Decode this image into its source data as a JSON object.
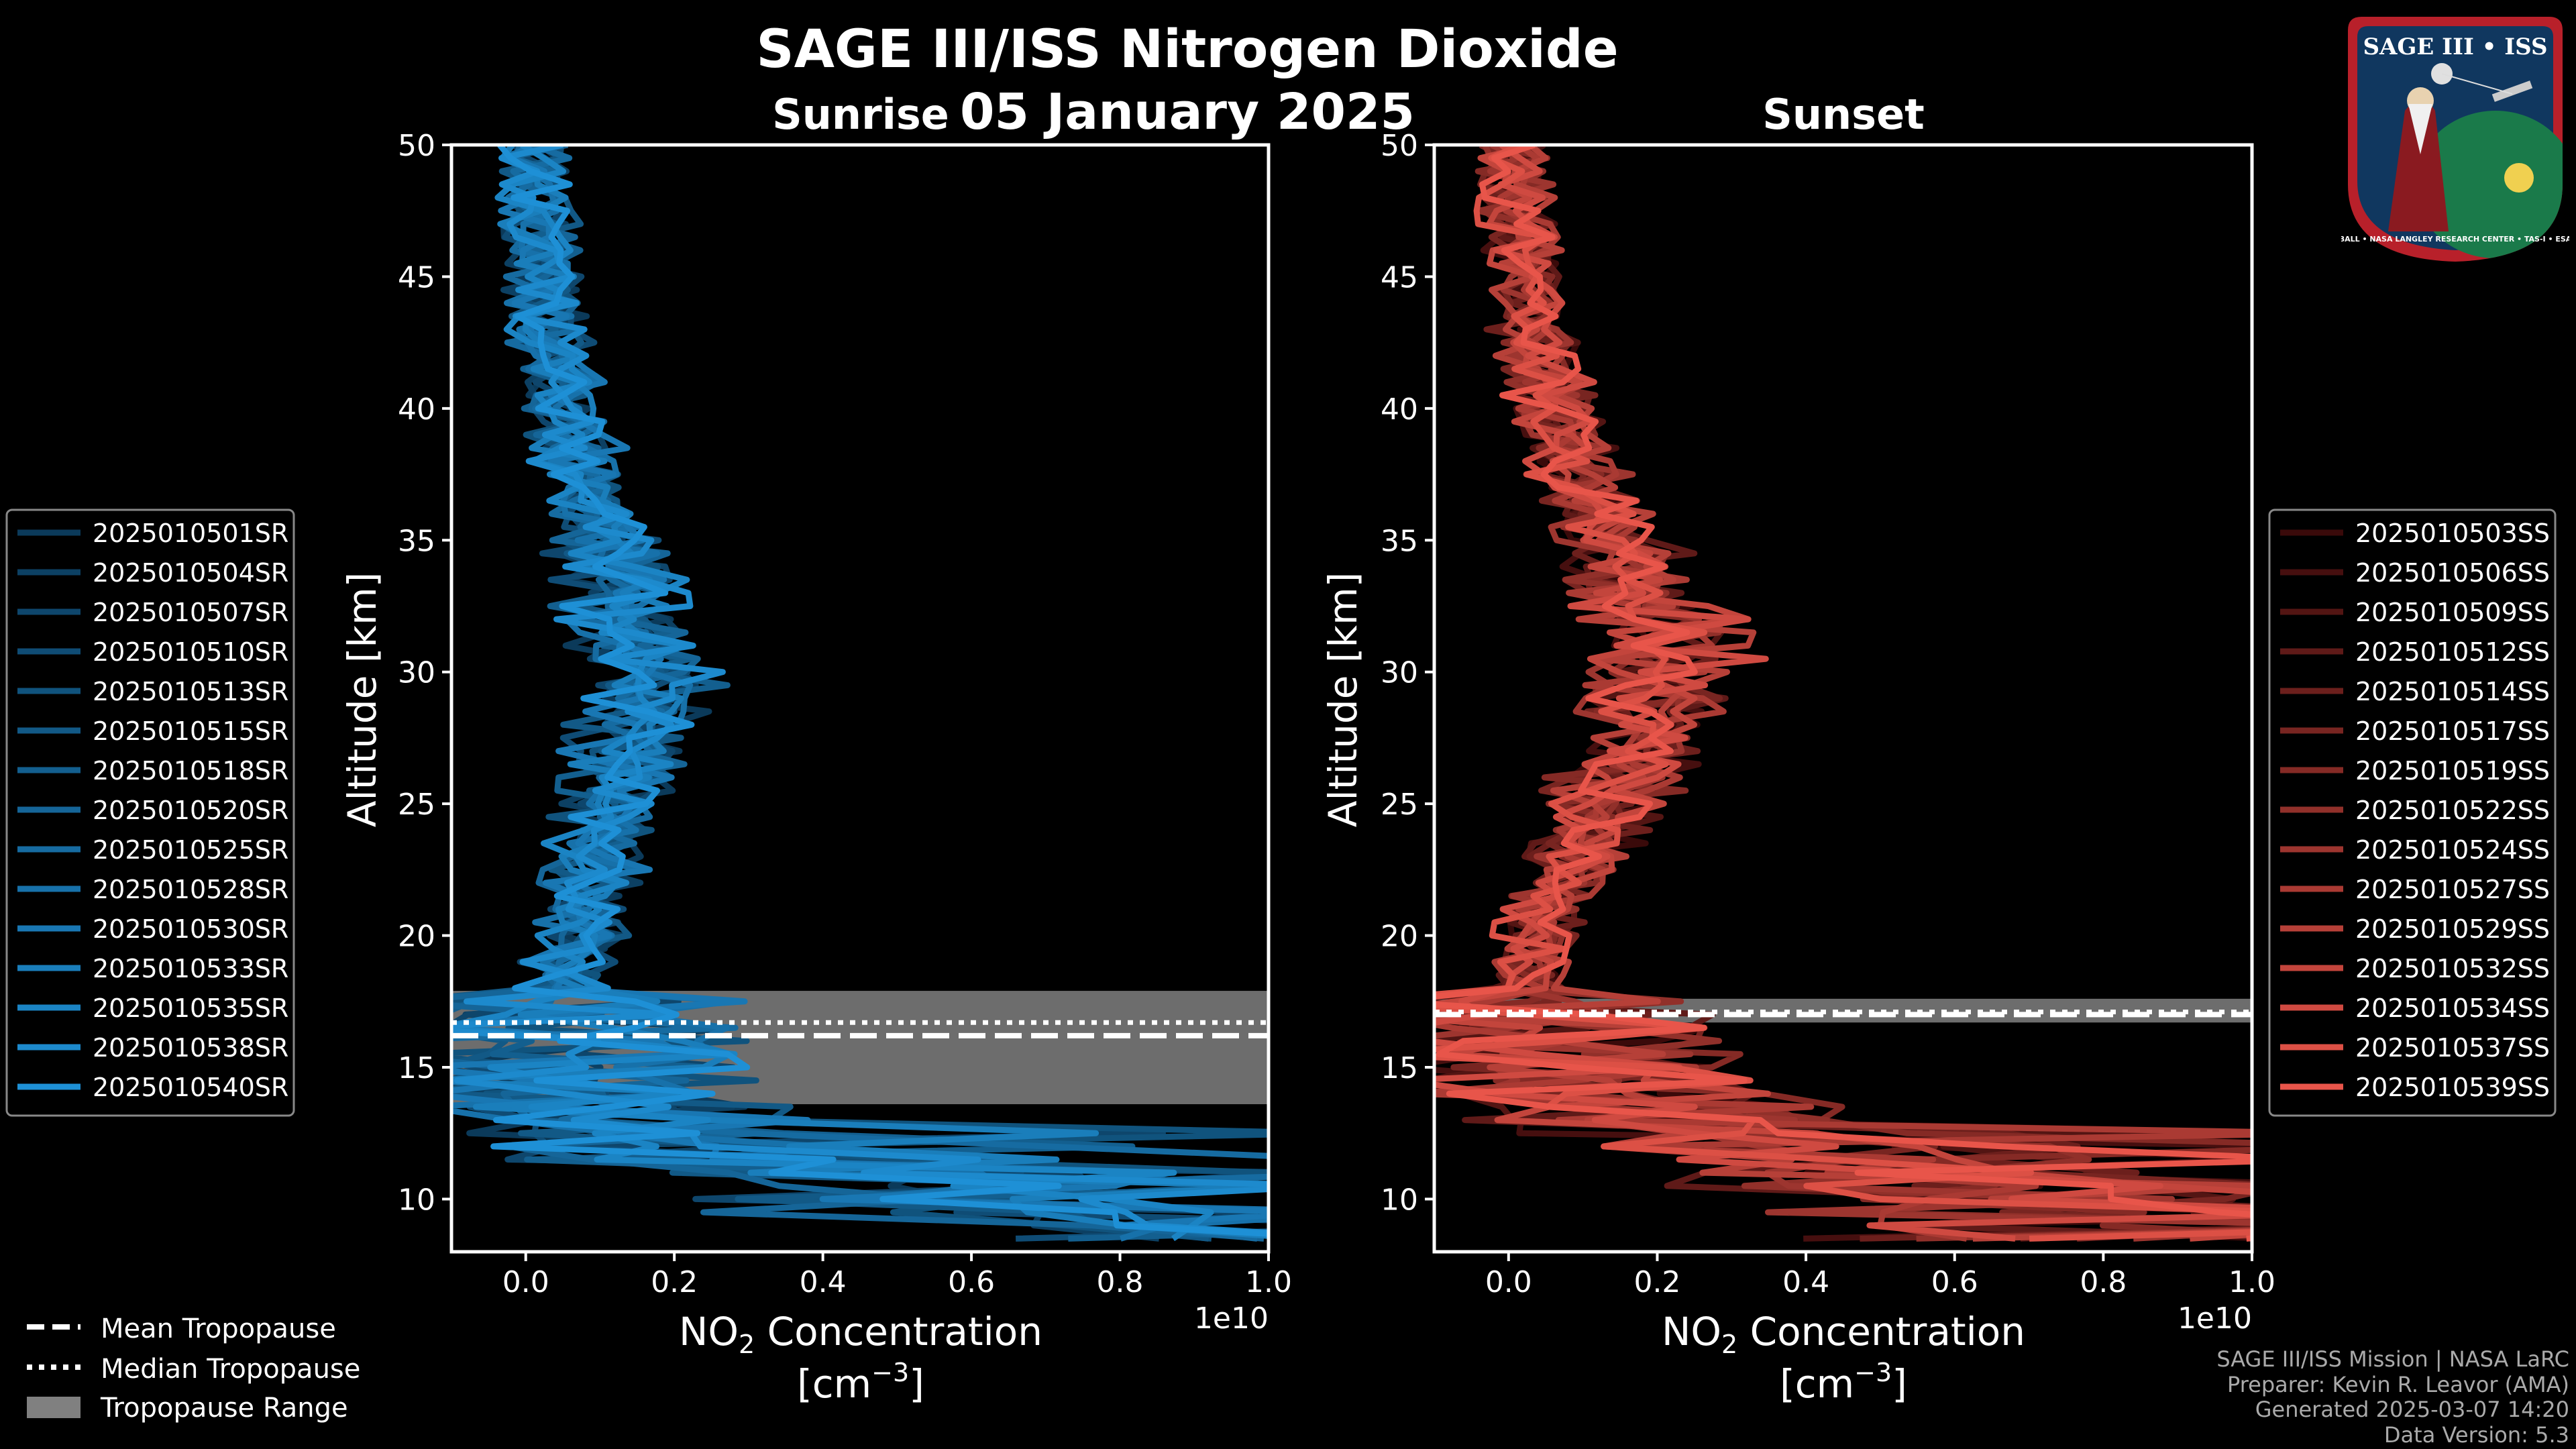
{
  "header": {
    "title": "SAGE III/ISS Nitrogen Dioxide",
    "date": "05 January 2025"
  },
  "footer": {
    "lines": [
      "SAGE III/ISS Mission | NASA LaRC",
      "Preparer: Kevin R. Leavor (AMA)",
      "Generated 2025-03-07 14:20",
      "Data Version: 5.3"
    ]
  },
  "logo": {
    "text": "SAGE III • ISS",
    "ring_text": "BALL • NASA LANGLEY RESEARCH CENTER • TAS-I • ESA"
  },
  "colors": {
    "sunrise": "#1e90d6",
    "sunset": "#e8554a",
    "tropopause_range": "#808080"
  },
  "legend_tropopause": [
    {
      "style": "dashed",
      "label": "Mean Tropopause"
    },
    {
      "style": "dotted",
      "label": "Median Tropopause"
    },
    {
      "style": "patch",
      "label": "Tropopause Range"
    }
  ],
  "chart_data": [
    {
      "type": "line",
      "title": "Sunrise",
      "xlabel": "NO$_2$ Concentration [cm$^{-3}$]",
      "xlabel_line1_pre": "NO",
      "xlabel_line1_sub": "2",
      "xlabel_line1_post": " Concentration",
      "xlabel_line2_pre": "[cm",
      "xlabel_line2_sup": "−3",
      "xlabel_line2_post": "]",
      "ylabel": "Altitude [km]",
      "x_offset_label": "1e10",
      "xlim": [
        -0.1,
        1.0
      ],
      "ylim": [
        8,
        50
      ],
      "xticks": [
        0.0,
        0.2,
        0.4,
        0.6,
        0.8,
        1.0
      ],
      "xtick_labels": [
        "0.0",
        "0.2",
        "0.4",
        "0.6",
        "0.8",
        "1.0"
      ],
      "yticks": [
        10,
        15,
        20,
        25,
        30,
        35,
        40,
        45,
        50
      ],
      "tropopause": {
        "mean": 16.2,
        "median": 16.7,
        "range": [
          13.6,
          17.9
        ]
      },
      "profile_altitudes": [
        9,
        10,
        11,
        12,
        13,
        14,
        15,
        16,
        17,
        18,
        19,
        20,
        21,
        22,
        23,
        24,
        25,
        26,
        27,
        28,
        29,
        30,
        31,
        32,
        33,
        34,
        35,
        36,
        37,
        38,
        39,
        40,
        41,
        42,
        43,
        44,
        45,
        46,
        47,
        48,
        49,
        50
      ],
      "profile_typical": [
        0.9,
        0.55,
        0.35,
        0.2,
        0.12,
        0.08,
        0.05,
        0.04,
        0.04,
        0.05,
        0.06,
        0.07,
        0.08,
        0.09,
        0.1,
        0.11,
        0.12,
        0.13,
        0.14,
        0.15,
        0.16,
        0.16,
        0.15,
        0.14,
        0.13,
        0.12,
        0.11,
        0.09,
        0.08,
        0.07,
        0.06,
        0.05,
        0.05,
        0.04,
        0.03,
        0.03,
        0.02,
        0.02,
        0.02,
        0.01,
        0.01,
        0.01
      ],
      "series": [
        {
          "name": "2025010501SR"
        },
        {
          "name": "2025010504SR"
        },
        {
          "name": "2025010507SR"
        },
        {
          "name": "2025010510SR"
        },
        {
          "name": "2025010513SR"
        },
        {
          "name": "2025010515SR"
        },
        {
          "name": "2025010518SR"
        },
        {
          "name": "2025010520SR"
        },
        {
          "name": "2025010525SR"
        },
        {
          "name": "2025010528SR"
        },
        {
          "name": "2025010530SR"
        },
        {
          "name": "2025010533SR"
        },
        {
          "name": "2025010535SR"
        },
        {
          "name": "2025010538SR"
        },
        {
          "name": "2025010540SR"
        }
      ],
      "series_color_range": [
        "#0b3a5a",
        "#1e90d6"
      ],
      "legend_position": "left",
      "grid": false
    },
    {
      "type": "line",
      "title": "Sunset",
      "xlabel": "NO$_2$ Concentration [cm$^{-3}$]",
      "xlabel_line1_pre": "NO",
      "xlabel_line1_sub": "2",
      "xlabel_line1_post": " Concentration",
      "xlabel_line2_pre": "[cm",
      "xlabel_line2_sup": "−3",
      "xlabel_line2_post": "]",
      "ylabel": "Altitude [km]",
      "x_offset_label": "1e10",
      "xlim": [
        -0.1,
        1.0
      ],
      "ylim": [
        8,
        50
      ],
      "xticks": [
        0.0,
        0.2,
        0.4,
        0.6,
        0.8,
        1.0
      ],
      "xtick_labels": [
        "0.0",
        "0.2",
        "0.4",
        "0.6",
        "0.8",
        "1.0"
      ],
      "yticks": [
        10,
        15,
        20,
        25,
        30,
        35,
        40,
        45,
        50
      ],
      "tropopause": {
        "mean": 17.0,
        "median": 17.1,
        "range": [
          16.7,
          17.6
        ]
      },
      "profile_altitudes": [
        9,
        10,
        11,
        12,
        13,
        14,
        15,
        16,
        17,
        18,
        19,
        20,
        21,
        22,
        23,
        24,
        25,
        26,
        27,
        28,
        29,
        30,
        31,
        32,
        33,
        34,
        35,
        36,
        37,
        38,
        39,
        40,
        41,
        42,
        43,
        44,
        45,
        46,
        47,
        48,
        49,
        50
      ],
      "profile_typical": [
        1.0,
        0.7,
        0.55,
        0.35,
        0.2,
        0.12,
        0.08,
        0.05,
        0.04,
        0.03,
        0.03,
        0.04,
        0.05,
        0.07,
        0.09,
        0.11,
        0.13,
        0.15,
        0.17,
        0.19,
        0.21,
        0.22,
        0.22,
        0.2,
        0.18,
        0.16,
        0.14,
        0.12,
        0.1,
        0.08,
        0.07,
        0.06,
        0.05,
        0.04,
        0.03,
        0.03,
        0.02,
        0.02,
        0.01,
        0.01,
        0.01,
        0.01
      ],
      "series": [
        {
          "name": "2025010503SS"
        },
        {
          "name": "2025010506SS"
        },
        {
          "name": "2025010509SS"
        },
        {
          "name": "2025010512SS"
        },
        {
          "name": "2025010514SS"
        },
        {
          "name": "2025010517SS"
        },
        {
          "name": "2025010519SS"
        },
        {
          "name": "2025010522SS"
        },
        {
          "name": "2025010524SS"
        },
        {
          "name": "2025010527SS"
        },
        {
          "name": "2025010529SS"
        },
        {
          "name": "2025010532SS"
        },
        {
          "name": "2025010534SS"
        },
        {
          "name": "2025010537SS"
        },
        {
          "name": "2025010539SS"
        }
      ],
      "series_color_range": [
        "#3a0a0a",
        "#e8554a"
      ],
      "legend_position": "right",
      "grid": false
    }
  ]
}
